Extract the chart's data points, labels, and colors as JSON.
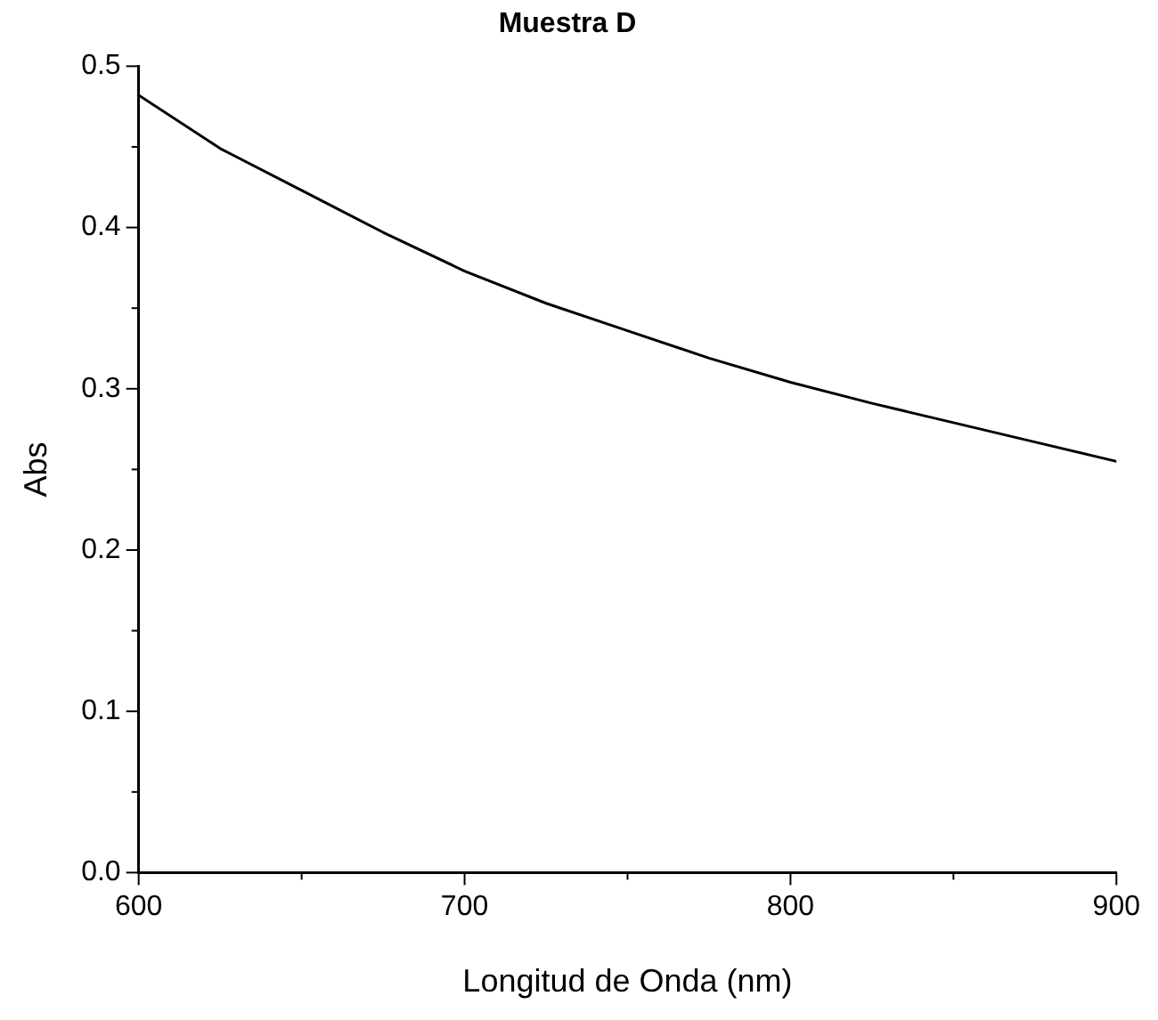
{
  "chart_data": {
    "type": "line",
    "title": "Muestra D",
    "xlabel": "Longitud de Onda (nm)",
    "ylabel": "Abs",
    "x": [
      600,
      625,
      650,
      675,
      700,
      725,
      750,
      775,
      800,
      825,
      850,
      875,
      900
    ],
    "series": [
      {
        "color": "#000000",
        "values": [
          0.482,
          0.449,
          0.423,
          0.397,
          0.373,
          0.353,
          0.336,
          0.319,
          0.304,
          0.291,
          0.279,
          0.267,
          0.255
        ]
      }
    ],
    "xlim": [
      600,
      900
    ],
    "xticks": [
      600,
      {
        "value": 650,
        "label": null
      },
      700,
      {
        "value": 750,
        "label": null
      },
      800,
      {
        "value": 850,
        "label": null
      },
      900
    ],
    "ylim": [
      0,
      0.5
    ],
    "yticks": [
      {
        "value": 0,
        "label": "0.0"
      },
      {
        "value": 0.05,
        "label": null
      },
      0.1,
      {
        "value": 0.15,
        "label": null
      },
      0.2,
      {
        "value": 0.25,
        "label": null
      },
      0.3,
      {
        "value": 0.35,
        "label": null
      },
      0.4,
      {
        "value": 0.45,
        "label": null
      },
      0.5
    ],
    "grid": false,
    "marker": "none",
    "line_style": "solid"
  }
}
